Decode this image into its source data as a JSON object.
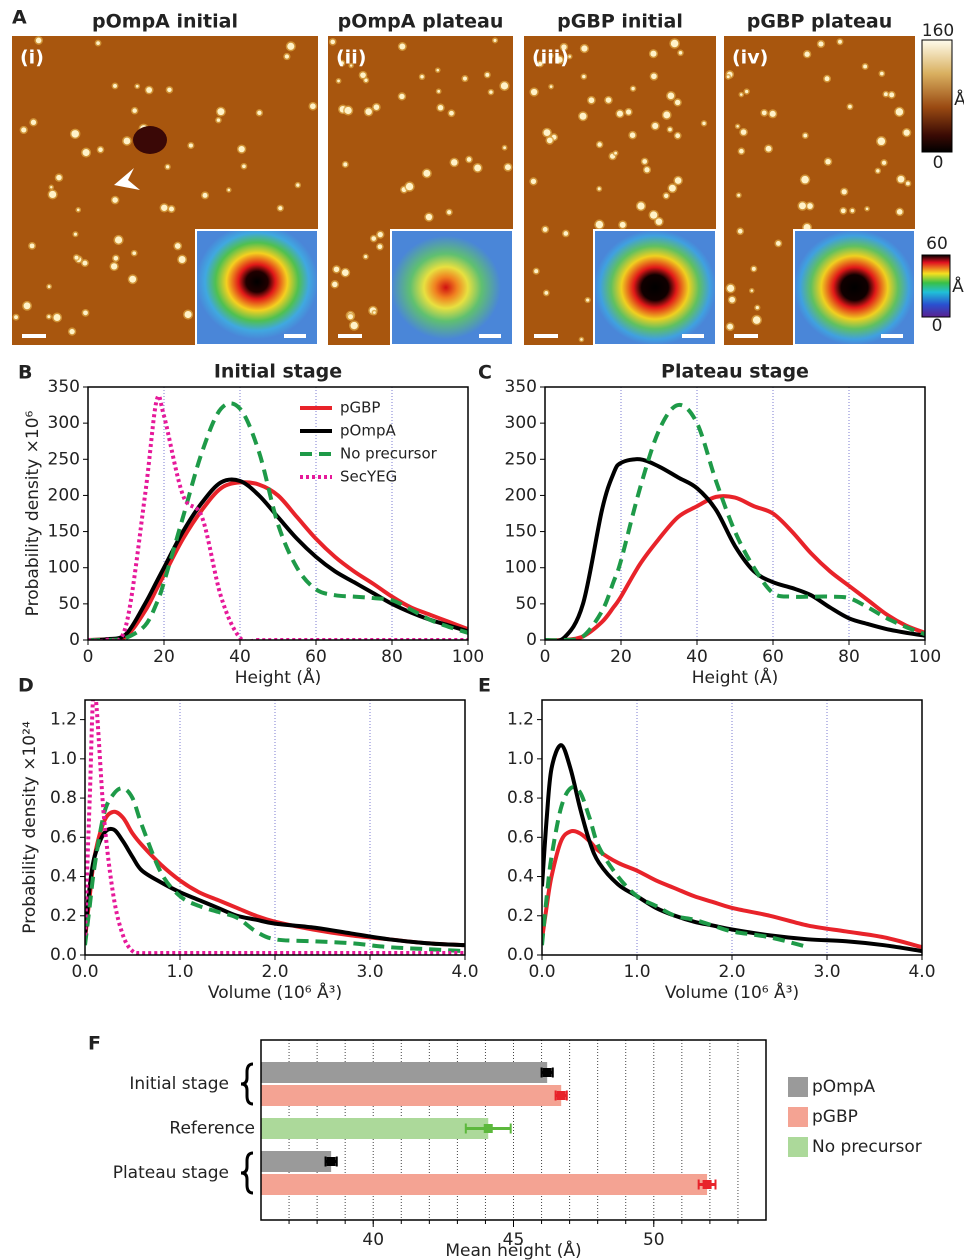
{
  "panel_a": {
    "label": "A",
    "panels": [
      {
        "title": "pOmpA initial",
        "tag": "(i)"
      },
      {
        "title": "pOmpA plateau",
        "tag": "(ii)"
      },
      {
        "title": "pGBP initial",
        "tag": "(iii)"
      },
      {
        "title": "pGBP plateau",
        "tag": "(iv)"
      }
    ],
    "height_scale": {
      "max": "160",
      "unit": "Å",
      "min": "0"
    },
    "inset_scale": {
      "max": "60",
      "unit": "Å",
      "min": "0"
    }
  },
  "chart_data": [
    {
      "type": "line",
      "panel_label": "B",
      "title": "Initial stage",
      "x_label": "Height (Å)",
      "y_label": "Probability density ×10⁶",
      "x": [
        0,
        5,
        10,
        15,
        18,
        20,
        25,
        30,
        35,
        40,
        45,
        50,
        55,
        60,
        65,
        70,
        75,
        80,
        85,
        90,
        95,
        100
      ],
      "xlim": [
        0,
        100
      ],
      "xticks": [
        0,
        20,
        40,
        60,
        80,
        100
      ],
      "ylim": [
        0,
        350
      ],
      "yticks": [
        0,
        50,
        100,
        150,
        200,
        250,
        300,
        350
      ],
      "grid": "x",
      "legend": "upper right",
      "series": [
        {
          "name": "pGBP",
          "color": "#e8232a",
          "style": "solid",
          "values": [
            0,
            1,
            5,
            40,
            70,
            90,
            140,
            180,
            210,
            218,
            215,
            200,
            170,
            140,
            115,
            95,
            78,
            60,
            45,
            35,
            25,
            15
          ]
        },
        {
          "name": "pOmpA",
          "color": "#000000",
          "style": "solid",
          "values": [
            0,
            1,
            8,
            50,
            80,
            100,
            150,
            190,
            218,
            220,
            200,
            170,
            140,
            115,
            95,
            80,
            65,
            50,
            38,
            28,
            20,
            12
          ]
        },
        {
          "name": "No precursor",
          "color": "#1e9a48",
          "style": "dashed",
          "values": [
            0,
            0,
            3,
            20,
            50,
            80,
            170,
            260,
            320,
            320,
            260,
            160,
            100,
            70,
            62,
            60,
            58,
            55,
            42,
            28,
            18,
            10
          ]
        },
        {
          "name": "SecYEG",
          "color": "#e6199a",
          "style": "dotted",
          "values": [
            0,
            0,
            20,
            200,
            330,
            310,
            200,
            170,
            60,
            3,
            0,
            0,
            0,
            0,
            0,
            0,
            0,
            0,
            0,
            0,
            0,
            0
          ]
        }
      ]
    },
    {
      "type": "line",
      "panel_label": "C",
      "title": "Plateau stage",
      "x_label": "Height (Å)",
      "x": [
        0,
        5,
        10,
        15,
        18,
        20,
        25,
        30,
        35,
        40,
        45,
        50,
        55,
        60,
        65,
        70,
        75,
        80,
        85,
        90,
        95,
        100
      ],
      "xlim": [
        0,
        100
      ],
      "xticks": [
        0,
        20,
        40,
        60,
        80,
        100
      ],
      "ylim": [
        0,
        350
      ],
      "yticks": [
        0,
        50,
        100,
        150,
        200,
        250,
        300,
        350
      ],
      "grid": "x",
      "series": [
        {
          "color": "#e8232a",
          "style": "solid",
          "values": [
            0,
            0,
            5,
            25,
            45,
            60,
            105,
            140,
            170,
            185,
            198,
            197,
            185,
            175,
            150,
            120,
            95,
            75,
            55,
            35,
            20,
            10
          ]
        },
        {
          "color": "#000000",
          "style": "solid",
          "values": [
            0,
            3,
            50,
            180,
            230,
            245,
            250,
            240,
            225,
            210,
            180,
            130,
            95,
            80,
            72,
            62,
            45,
            30,
            22,
            15,
            10,
            6
          ]
        },
        {
          "color": "#1e9a48",
          "style": "dashed",
          "values": [
            0,
            0,
            5,
            40,
            80,
            110,
            210,
            290,
            325,
            300,
            220,
            150,
            100,
            65,
            60,
            60,
            60,
            58,
            45,
            30,
            18,
            8
          ]
        }
      ]
    },
    {
      "type": "line",
      "panel_label": "D",
      "x_label": "Volume (10⁶ Å³)",
      "y_label": "Probability density ×10²⁴",
      "x": [
        0,
        0.05,
        0.1,
        0.2,
        0.3,
        0.4,
        0.5,
        0.6,
        0.8,
        1.0,
        1.2,
        1.4,
        1.6,
        1.8,
        2.0,
        2.4,
        2.8,
        3.2,
        3.6,
        4.0
      ],
      "xlim": [
        0,
        4
      ],
      "xticks": [
        {
          "value": 0,
          "label": "0.0"
        },
        {
          "value": 1,
          "label": "1.0"
        },
        {
          "value": 2,
          "label": "2.0"
        },
        {
          "value": 3,
          "label": "3.0"
        },
        {
          "value": 4,
          "label": "4.0"
        }
      ],
      "ylim": [
        0,
        1.3
      ],
      "yticks": [
        {
          "value": 0,
          "label": "0.0"
        },
        0.2,
        0.4,
        0.6,
        0.8,
        {
          "value": 1,
          "label": "1.0"
        },
        1.2
      ],
      "grid": "x",
      "series": [
        {
          "color": "#e8232a",
          "style": "solid",
          "values": [
            0.08,
            0.3,
            0.5,
            0.68,
            0.73,
            0.7,
            0.62,
            0.56,
            0.46,
            0.38,
            0.32,
            0.28,
            0.24,
            0.2,
            0.17,
            0.13,
            0.1,
            0.08,
            0.06,
            0.05
          ]
        },
        {
          "color": "#000000",
          "style": "solid",
          "values": [
            0.1,
            0.35,
            0.5,
            0.62,
            0.64,
            0.58,
            0.5,
            0.43,
            0.37,
            0.32,
            0.28,
            0.24,
            0.2,
            0.18,
            0.16,
            0.14,
            0.11,
            0.08,
            0.06,
            0.05
          ]
        },
        {
          "color": "#1e9a48",
          "style": "dashed",
          "values": [
            0.05,
            0.25,
            0.45,
            0.72,
            0.82,
            0.85,
            0.8,
            0.66,
            0.42,
            0.3,
            0.25,
            0.22,
            0.19,
            0.12,
            0.08,
            0.07,
            0.06,
            0.04,
            0.03,
            0.02
          ]
        },
        {
          "color": "#e6199a",
          "style": "dotted",
          "values": [
            0.1,
            0.8,
            1.35,
            0.7,
            0.3,
            0.1,
            0.02,
            0.01,
            0.01,
            0.01,
            0.01,
            0.01,
            0.01,
            0.01,
            0.01,
            0.01,
            0.01,
            0.01,
            0.01,
            0.01
          ]
        }
      ]
    },
    {
      "type": "line",
      "panel_label": "E",
      "x_label": "Volume (10⁶ Å³)",
      "x": [
        0,
        0.05,
        0.1,
        0.2,
        0.3,
        0.4,
        0.5,
        0.6,
        0.8,
        1.0,
        1.2,
        1.4,
        1.6,
        1.8,
        2.0,
        2.4,
        2.8,
        3.2,
        3.6,
        4.0
      ],
      "xlim": [
        0,
        4
      ],
      "xticks": [
        {
          "value": 0,
          "label": "0.0"
        },
        {
          "value": 1,
          "label": "1.0"
        },
        {
          "value": 2,
          "label": "2.0"
        },
        {
          "value": 3,
          "label": "3.0"
        },
        {
          "value": 4,
          "label": "4.0"
        }
      ],
      "ylim": [
        0,
        1.3
      ],
      "yticks": [
        {
          "value": 0,
          "label": "0.0"
        },
        0.2,
        0.4,
        0.6,
        0.8,
        {
          "value": 1,
          "label": "1.0"
        },
        1.2
      ],
      "grid": "x",
      "series": [
        {
          "color": "#e8232a",
          "style": "solid",
          "values": [
            0.08,
            0.25,
            0.4,
            0.58,
            0.63,
            0.62,
            0.58,
            0.53,
            0.47,
            0.43,
            0.38,
            0.34,
            0.3,
            0.27,
            0.24,
            0.2,
            0.15,
            0.12,
            0.09,
            0.04
          ]
        },
        {
          "color": "#000000",
          "style": "solid",
          "values": [
            0.35,
            0.7,
            0.95,
            1.07,
            0.95,
            0.75,
            0.58,
            0.47,
            0.36,
            0.3,
            0.24,
            0.2,
            0.17,
            0.15,
            0.13,
            0.1,
            0.08,
            0.07,
            0.05,
            0.02
          ]
        },
        {
          "color": "#1e9a48",
          "style": "dashed",
          "values": [
            0.05,
            0.3,
            0.5,
            0.75,
            0.85,
            0.83,
            0.7,
            0.55,
            0.4,
            0.3,
            0.25,
            0.2,
            0.18,
            0.15,
            0.12,
            0.09,
            0.04,
            null,
            null,
            null
          ]
        }
      ]
    },
    {
      "type": "hbar",
      "panel_label": "F",
      "x_label": "Mean height (Å)",
      "categories": [
        "Initial stage",
        "Reference",
        "Plateau stage"
      ],
      "xlim": [
        36,
        54
      ],
      "xticks": [
        40,
        45,
        50
      ],
      "minor_xticks": [
        37,
        38,
        39,
        40,
        41,
        42,
        43,
        44,
        45,
        46,
        47,
        48,
        49,
        50,
        51,
        52,
        53
      ],
      "grid": "x",
      "legend": "right",
      "series": [
        {
          "name": "pOmpA",
          "color": "#9a9a9a",
          "error_color": "#000000",
          "values": [
            46.2,
            null,
            38.5
          ],
          "errors": [
            0.2,
            null,
            0.2
          ]
        },
        {
          "name": "pGBP",
          "color": "#f4a393",
          "error_color": "#e8232a",
          "values": [
            46.7,
            null,
            51.9
          ],
          "errors": [
            0.2,
            null,
            0.3
          ]
        },
        {
          "name": "No precursor",
          "color": "#acd99a",
          "error_color": "#5cb83c",
          "values": [
            null,
            44.1,
            null
          ],
          "errors": [
            null,
            0.8,
            null
          ]
        }
      ]
    }
  ]
}
